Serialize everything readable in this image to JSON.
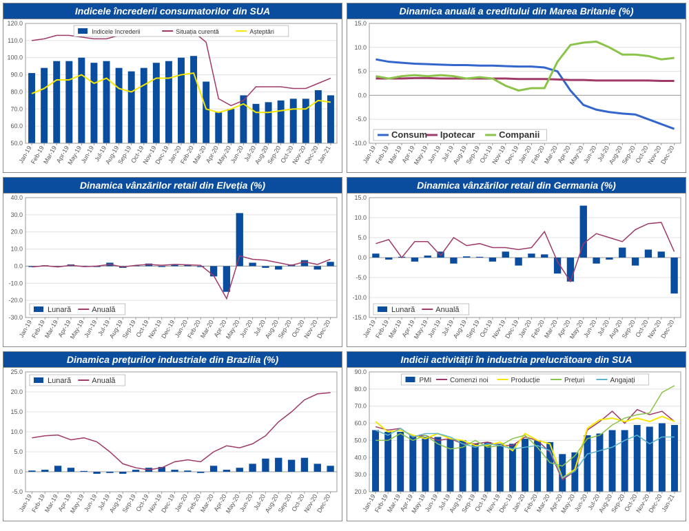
{
  "colors": {
    "title_bg": "#0a4d9e",
    "bar": "#0a4d9e",
    "line_purple": "#9e3968",
    "line_yellow": "#f7e600",
    "line_blue": "#3366cc",
    "line_green": "#8bc34a",
    "line_cyan": "#5db5cc",
    "grid": "#e0e0e0",
    "axis": "#999999",
    "text": "#555555"
  },
  "x_labels_25": [
    "Jan-19",
    "Feb-19",
    "Mar-19",
    "Apr-19",
    "May-19",
    "Jun-19",
    "Jul-19",
    "Aug-19",
    "Sep-19",
    "Oct-19",
    "Nov-19",
    "Dec-19",
    "Jan-20",
    "Feb-20",
    "Mar-20",
    "Apr-20",
    "May-20",
    "Jun-20",
    "Jul-20",
    "Aug-20",
    "Sep-20",
    "Oct-20",
    "Nov-20",
    "Dec-20",
    "Jan-21"
  ],
  "x_labels_24": [
    "Jan-19",
    "Feb-19",
    "Mar-19",
    "Apr-19",
    "May-19",
    "Jun-19",
    "Jul-19",
    "Aug-19",
    "Sep-19",
    "Oct-19",
    "Nov-19",
    "Dec-19",
    "Jan-20",
    "Feb-20",
    "Mar-20",
    "Apr-20",
    "May-20",
    "Jun-20",
    "Jul-20",
    "Aug-20",
    "Sep-20",
    "Oct-20",
    "Nov-20",
    "Dec-20"
  ],
  "charts": [
    {
      "id": "usa-confidence",
      "title": "Indicele încrederii consumatorilor din SUA",
      "x_labels_key": "x_labels_25",
      "ylim": [
        50,
        120
      ],
      "ystep": 10,
      "legend_pos": "inside-top",
      "legend": [
        {
          "type": "bar",
          "color": "#0a4d9e",
          "label": "Indicele încrederii",
          "fs": 9
        },
        {
          "type": "line",
          "color": "#9e3968",
          "label": "Situația curentă",
          "fs": 9
        },
        {
          "type": "line",
          "color": "#f7e600",
          "label": "Așteptări",
          "fs": 9
        }
      ],
      "bars": {
        "color": "#0a4d9e",
        "values": [
          91,
          94,
          98,
          98,
          100,
          97,
          98,
          94,
          92,
          94,
          97,
          98,
          100,
          101,
          86,
          68,
          70,
          78,
          73,
          74,
          75,
          76,
          76,
          81,
          78
        ]
      },
      "lines": [
        {
          "color": "#9e3968",
          "width": 1.5,
          "values": [
            110,
            111,
            113,
            113,
            112,
            111,
            111,
            113,
            113,
            114,
            114,
            115,
            115,
            115,
            109,
            76,
            72,
            75,
            83,
            83,
            83,
            82,
            82,
            85,
            88
          ]
        },
        {
          "color": "#f7e600",
          "width": 2,
          "values": [
            79,
            82,
            87,
            87,
            90,
            85,
            88,
            82,
            80,
            84,
            88,
            88,
            90,
            91,
            70,
            68,
            70,
            73,
            68,
            68,
            69,
            70,
            70,
            75,
            74
          ]
        }
      ]
    },
    {
      "id": "uk-credit",
      "title": "Dinamica anuală a creditului din Marea Britanie (%)",
      "x_labels_key": "x_labels_24",
      "ylim": [
        -10,
        15
      ],
      "ystep": 5,
      "legend_pos": "bottom-left",
      "legend": [
        {
          "type": "line",
          "color": "#3366cc",
          "label": "Consum",
          "fs": 13,
          "bold": true,
          "lw": 3
        },
        {
          "type": "line",
          "color": "#9e3968",
          "label": "Ipotecar",
          "fs": 13,
          "bold": true,
          "lw": 3
        },
        {
          "type": "line",
          "color": "#8bc34a",
          "label": "Companii",
          "fs": 13,
          "bold": true,
          "lw": 3
        }
      ],
      "lines": [
        {
          "color": "#3366cc",
          "width": 3,
          "values": [
            7.5,
            7.0,
            6.8,
            6.6,
            6.5,
            6.4,
            6.3,
            6.3,
            6.2,
            6.2,
            6.1,
            6.0,
            6.0,
            5.8,
            5.0,
            1.0,
            -2.0,
            -3.0,
            -3.5,
            -3.8,
            -4.0,
            -5.0,
            -6.0,
            -7.0
          ]
        },
        {
          "color": "#9e3968",
          "width": 3,
          "values": [
            3.5,
            3.5,
            3.5,
            3.6,
            3.6,
            3.5,
            3.5,
            3.5,
            3.5,
            3.5,
            3.5,
            3.4,
            3.4,
            3.4,
            3.3,
            3.2,
            3.2,
            3.1,
            3.1,
            3.1,
            3.1,
            3.1,
            3.0,
            3.0
          ]
        },
        {
          "color": "#8bc34a",
          "width": 3,
          "values": [
            4.0,
            3.5,
            4.0,
            4.2,
            4.0,
            4.2,
            4.0,
            3.5,
            3.8,
            3.5,
            2.0,
            1.0,
            1.5,
            1.5,
            7.0,
            10.5,
            11.0,
            11.2,
            10.0,
            8.5,
            8.5,
            8.2,
            7.5,
            7.8
          ]
        }
      ]
    },
    {
      "id": "ch-retail",
      "title": "Dinamica vânzărilor retail din Elveția (%)",
      "x_labels_key": "x_labels_24",
      "ylim": [
        -30,
        40
      ],
      "ystep": 10,
      "legend_pos": "bottom-left",
      "legend": [
        {
          "type": "bar",
          "color": "#0a4d9e",
          "label": "Lunară",
          "fs": 11
        },
        {
          "type": "line",
          "color": "#9e3968",
          "label": "Anuală",
          "fs": 11
        }
      ],
      "bars": {
        "color": "#0a4d9e",
        "values": [
          -0.5,
          0.5,
          -0.3,
          1.0,
          0.2,
          -0.5,
          2.0,
          -1.0,
          0.5,
          1.5,
          -0.5,
          1.2,
          1.0,
          -0.5,
          -6.0,
          -15.0,
          31.0,
          2.0,
          -1.0,
          -2.0,
          1.0,
          3.5,
          -2.0,
          2.5
        ]
      },
      "lines": [
        {
          "color": "#9e3968",
          "width": 1.5,
          "values": [
            -0.5,
            0.2,
            -0.5,
            0.5,
            -0.3,
            0.0,
            1.0,
            -0.5,
            0.5,
            1.0,
            0.5,
            1.0,
            0.8,
            0.5,
            -5.5,
            -19.0,
            6.0,
            4.0,
            3.5,
            2.0,
            0.5,
            2.5,
            1.0,
            4.0
          ]
        }
      ]
    },
    {
      "id": "de-retail",
      "title": "Dinamica vânzărilor retail din Germania (%)",
      "x_labels_key": "x_labels_24",
      "ylim": [
        -15,
        15
      ],
      "ystep": 5,
      "legend_pos": "bottom-left",
      "legend": [
        {
          "type": "bar",
          "color": "#0a4d9e",
          "label": "Lunară",
          "fs": 11
        },
        {
          "type": "line",
          "color": "#9e3968",
          "label": "Anuală",
          "fs": 11
        }
      ],
      "bars": {
        "color": "#0a4d9e",
        "values": [
          1.0,
          -0.5,
          0.2,
          -1.0,
          0.5,
          1.5,
          -1.5,
          0.3,
          0.2,
          -1.0,
          1.5,
          -2.0,
          1.0,
          0.8,
          -4.0,
          -6.0,
          13.0,
          -1.5,
          -0.5,
          2.5,
          -2.0,
          2.0,
          1.5,
          -9.0
        ]
      },
      "lines": [
        {
          "color": "#9e3968",
          "width": 1.5,
          "values": [
            3.5,
            4.5,
            0.0,
            4.0,
            4.0,
            0.5,
            5.0,
            3.0,
            3.5,
            2.5,
            2.5,
            2.0,
            2.5,
            6.5,
            -1.0,
            -6.0,
            3.5,
            6.0,
            5.0,
            4.0,
            7.0,
            8.5,
            8.8,
            1.5
          ]
        }
      ]
    },
    {
      "id": "br-ppi",
      "title": "Dinamica prețurilor industriale din Brazilia (%)",
      "x_labels_key": "x_labels_24",
      "ylim": [
        -5,
        25
      ],
      "ystep": 5,
      "legend_pos": "top-left",
      "legend": [
        {
          "type": "bar",
          "color": "#0a4d9e",
          "label": "Lunară",
          "fs": 11
        },
        {
          "type": "line",
          "color": "#9e3968",
          "label": "Anuală",
          "fs": 11
        }
      ],
      "bars": {
        "color": "#0a4d9e",
        "values": [
          0.3,
          0.5,
          1.5,
          1.0,
          0.2,
          -0.5,
          -0.3,
          -0.5,
          0.5,
          1.0,
          1.2,
          0.5,
          0.3,
          -0.3,
          1.5,
          0.5,
          1.0,
          2.0,
          3.3,
          3.5,
          3.0,
          3.5,
          2.0,
          1.5
        ]
      },
      "lines": [
        {
          "color": "#9e3968",
          "width": 1.5,
          "values": [
            8.5,
            9.0,
            9.2,
            8.0,
            8.5,
            7.5,
            5.0,
            2.0,
            1.0,
            0.5,
            1.0,
            2.5,
            3.0,
            2.5,
            5.0,
            6.5,
            6.0,
            7.0,
            9.0,
            12.5,
            15.0,
            18.0,
            19.5,
            19.8
          ]
        }
      ]
    },
    {
      "id": "usa-pmi",
      "title": "Indicii activității în industria prelucrătoare din SUA",
      "x_labels_key": "x_labels_25",
      "ylim": [
        20,
        90
      ],
      "ystep": 10,
      "legend_pos": "inside-top",
      "legend": [
        {
          "type": "bar",
          "color": "#0a4d9e",
          "label": "PMI",
          "fs": 10
        },
        {
          "type": "line",
          "color": "#9e3968",
          "label": "Comenzi noi",
          "fs": 10
        },
        {
          "type": "line",
          "color": "#f7e600",
          "label": "Producție",
          "fs": 10
        },
        {
          "type": "line",
          "color": "#8bc34a",
          "label": "Prețuri",
          "fs": 10
        },
        {
          "type": "line",
          "color": "#5db5cc",
          "label": "Angajați",
          "fs": 10
        }
      ],
      "bars": {
        "color": "#0a4d9e",
        "values": [
          56,
          55,
          55,
          53,
          52,
          52,
          51,
          50,
          48,
          49,
          48,
          48,
          51,
          50,
          49,
          42,
          43,
          53,
          54,
          56,
          56,
          59,
          58,
          60,
          59
        ]
      },
      "lines": [
        {
          "color": "#9e3968",
          "width": 1.5,
          "values": [
            58,
            56,
            57,
            52,
            53,
            50,
            51,
            48,
            48,
            49,
            47,
            47,
            52,
            50,
            43,
            27,
            32,
            56,
            61,
            67,
            60,
            68,
            65,
            67,
            61
          ]
        },
        {
          "color": "#f7e600",
          "width": 2,
          "values": [
            61,
            55,
            56,
            53,
            51,
            54,
            51,
            50,
            47,
            47,
            49,
            44,
            54,
            50,
            48,
            28,
            33,
            57,
            62,
            63,
            61,
            63,
            61,
            64,
            61
          ]
        },
        {
          "color": "#8bc34a",
          "width": 1.5,
          "values": [
            50,
            50,
            54,
            50,
            53,
            48,
            45,
            46,
            50,
            46,
            47,
            51,
            53,
            46,
            37,
            35,
            41,
            51,
            53,
            59,
            63,
            65,
            66,
            78,
            82
          ]
        },
        {
          "color": "#5db5cc",
          "width": 1.5,
          "values": [
            56,
            53,
            57,
            52,
            54,
            54,
            52,
            48,
            46,
            48,
            47,
            45,
            46,
            47,
            44,
            28,
            32,
            42,
            44,
            46,
            50,
            53,
            48,
            52,
            52
          ]
        }
      ]
    }
  ]
}
